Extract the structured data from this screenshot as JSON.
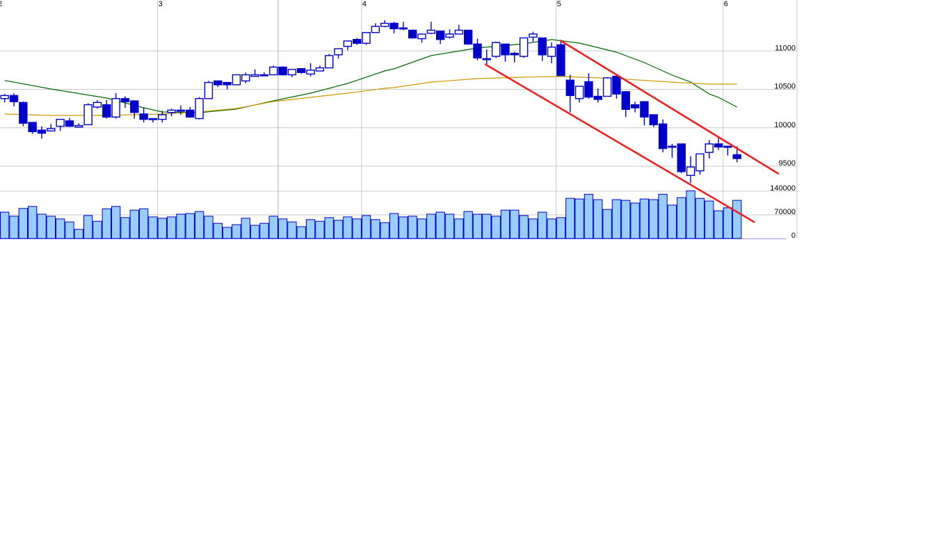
{
  "chart_data": {
    "type": "candlestick",
    "title": "",
    "x_tick_labels": [
      {
        "label": "2",
        "index": -0.5
      },
      {
        "label": "3",
        "index": 16.5
      },
      {
        "label": "4",
        "index": 38.5
      },
      {
        "label": "5",
        "index": 59.5
      },
      {
        "label": "6",
        "index": 77.5
      }
    ],
    "x_minor_grid_index": [
      29.5
    ],
    "price_axis": {
      "ticks": [
        9500,
        10000,
        10500,
        11000
      ],
      "labels": [
        "9500",
        "10000",
        "10500",
        "11000"
      ],
      "position": "right"
    },
    "volume_axis": {
      "ticks": [
        0,
        70000,
        140000
      ],
      "labels": [
        "0",
        "70000",
        "140000"
      ],
      "position": "right"
    },
    "grid": true,
    "colors": {
      "candle": "#0000CC",
      "volume_fill": "#99CCFF",
      "ma_short": "#006600",
      "ma_long": "#CC9900",
      "trendline": "#EE2222",
      "grid": "#C8C8C8"
    },
    "ohlc": [
      [
        10380,
        10440,
        10330,
        10420
      ],
      [
        10420,
        10450,
        10280,
        10340
      ],
      [
        10330,
        10340,
        10020,
        10060
      ],
      [
        10070,
        10070,
        9920,
        9950
      ],
      [
        9970,
        10020,
        9860,
        9930
      ],
      [
        9960,
        10050,
        9950,
        9990
      ],
      [
        10020,
        10110,
        9960,
        10110
      ],
      [
        10090,
        10130,
        10010,
        10020
      ],
      [
        10010,
        10060,
        10010,
        10030
      ],
      [
        10040,
        10320,
        10040,
        10300
      ],
      [
        10270,
        10360,
        10250,
        10330
      ],
      [
        10300,
        10360,
        10120,
        10140
      ],
      [
        10140,
        10450,
        10120,
        10380
      ],
      [
        10380,
        10410,
        10260,
        10340
      ],
      [
        10350,
        10360,
        10120,
        10200
      ],
      [
        10180,
        10260,
        10070,
        10110
      ],
      [
        10110,
        10120,
        10070,
        10120
      ],
      [
        10110,
        10220,
        10070,
        10170
      ],
      [
        10200,
        10250,
        10150,
        10230
      ],
      [
        10220,
        10290,
        10170,
        10230
      ],
      [
        10230,
        10270,
        10130,
        10140
      ],
      [
        10120,
        10400,
        10110,
        10380
      ],
      [
        10380,
        10610,
        10380,
        10590
      ],
      [
        10610,
        10610,
        10530,
        10560
      ],
      [
        10590,
        10590,
        10500,
        10560
      ],
      [
        10560,
        10690,
        10560,
        10690
      ],
      [
        10610,
        10720,
        10580,
        10690
      ],
      [
        10670,
        10760,
        10670,
        10690
      ],
      [
        10680,
        10720,
        10680,
        10690
      ],
      [
        10690,
        10810,
        10690,
        10790
      ],
      [
        10790,
        10800,
        10680,
        10690
      ],
      [
        10690,
        10760,
        10660,
        10760
      ],
      [
        10770,
        10770,
        10700,
        10720
      ],
      [
        10700,
        10840,
        10670,
        10750
      ],
      [
        10740,
        10810,
        10740,
        10780
      ],
      [
        10780,
        10960,
        10780,
        10940
      ],
      [
        10950,
        11030,
        10900,
        11030
      ],
      [
        11060,
        11130,
        11010,
        11130
      ],
      [
        11150,
        11170,
        11080,
        11100
      ],
      [
        11100,
        11240,
        11080,
        11240
      ],
      [
        11240,
        11360,
        11240,
        11320
      ],
      [
        11320,
        11400,
        11310,
        11360
      ],
      [
        11360,
        11380,
        11230,
        11290
      ],
      [
        11300,
        11380,
        11270,
        11290
      ],
      [
        11270,
        11280,
        11160,
        11170
      ],
      [
        11160,
        11220,
        11110,
        11220
      ],
      [
        11230,
        11380,
        11220,
        11270
      ],
      [
        11260,
        11260,
        11090,
        11150
      ],
      [
        11180,
        11280,
        11160,
        11220
      ],
      [
        11220,
        11340,
        11220,
        11270
      ],
      [
        11270,
        11270,
        11080,
        11090
      ],
      [
        11090,
        11160,
        10880,
        10910
      ],
      [
        10890,
        11020,
        10830,
        10900
      ],
      [
        10930,
        11120,
        10910,
        11110
      ],
      [
        11090,
        11090,
        10860,
        10950
      ],
      [
        10970,
        10990,
        10850,
        10950
      ],
      [
        10930,
        11170,
        10910,
        11170
      ],
      [
        11180,
        11250,
        11120,
        11220
      ],
      [
        11170,
        11170,
        10870,
        10950
      ],
      [
        10930,
        11110,
        10840,
        11050
      ],
      [
        11080,
        11120,
        10680,
        10680
      ],
      [
        10620,
        10690,
        10200,
        10420
      ],
      [
        10380,
        10540,
        10330,
        10540
      ],
      [
        10600,
        10710,
        10380,
        10400
      ],
      [
        10410,
        10510,
        10330,
        10370
      ],
      [
        10410,
        10660,
        10410,
        10650
      ],
      [
        10670,
        10670,
        10380,
        10440
      ],
      [
        10470,
        10470,
        10140,
        10240
      ],
      [
        10300,
        10340,
        10200,
        10260
      ],
      [
        10340,
        10340,
        10030,
        10140
      ],
      [
        10170,
        10170,
        10010,
        10040
      ],
      [
        10050,
        10110,
        9680,
        9730
      ],
      [
        9750,
        9790,
        9610,
        9760
      ],
      [
        9790,
        9790,
        9410,
        9430
      ],
      [
        9380,
        9630,
        9280,
        9490
      ],
      [
        9440,
        9660,
        9390,
        9660
      ],
      [
        9680,
        9840,
        9600,
        9790
      ],
      [
        9790,
        9870,
        9710,
        9750
      ],
      [
        9760,
        9760,
        9640,
        9750
      ],
      [
        9650,
        9760,
        9550,
        9600
      ]
    ],
    "volume": [
      78000,
      66000,
      89000,
      95000,
      72000,
      66000,
      58000,
      49000,
      27000,
      68000,
      51000,
      88000,
      95000,
      62000,
      84000,
      88000,
      64000,
      60000,
      64000,
      72000,
      74000,
      80000,
      66000,
      45000,
      33000,
      41000,
      60000,
      39000,
      45000,
      66000,
      58000,
      49000,
      35000,
      56000,
      51000,
      62000,
      54000,
      64000,
      58000,
      68000,
      56000,
      47000,
      74000,
      64000,
      66000,
      58000,
      72000,
      78000,
      72000,
      58000,
      80000,
      72000,
      72000,
      66000,
      84000,
      84000,
      68000,
      58000,
      78000,
      58000,
      62000,
      119000,
      117000,
      131000,
      115000,
      86000,
      115000,
      113000,
      105000,
      117000,
      115000,
      131000,
      99000,
      121000,
      141000,
      119000,
      111000,
      82000,
      91000,
      113000
    ],
    "moving_averages": [
      {
        "color": "#006600",
        "points": [
          [
            0,
            10616
          ],
          [
            5,
            10505
          ],
          [
            11,
            10387
          ],
          [
            15,
            10261
          ],
          [
            17,
            10206
          ],
          [
            21,
            10197
          ],
          [
            25,
            10243
          ],
          [
            29,
            10351
          ],
          [
            33,
            10451
          ],
          [
            37,
            10577
          ],
          [
            41,
            10740
          ],
          [
            42,
            10767
          ],
          [
            46,
            10939
          ],
          [
            51,
            11039
          ],
          [
            56,
            11093
          ],
          [
            59,
            11148
          ],
          [
            62,
            11102
          ],
          [
            66,
            10985
          ],
          [
            69,
            10849
          ],
          [
            72,
            10686
          ],
          [
            74,
            10595
          ],
          [
            76,
            10441
          ],
          [
            77,
            10396
          ],
          [
            79,
            10270
          ]
        ]
      },
      {
        "color": "#CC9900",
        "points": [
          [
            0,
            10179
          ],
          [
            5,
            10161
          ],
          [
            11,
            10161
          ],
          [
            17,
            10179
          ],
          [
            21,
            10206
          ],
          [
            25,
            10252
          ],
          [
            29,
            10342
          ],
          [
            33,
            10396
          ],
          [
            37,
            10451
          ],
          [
            41,
            10514
          ],
          [
            42,
            10523
          ],
          [
            46,
            10595
          ],
          [
            51,
            10641
          ],
          [
            56,
            10659
          ],
          [
            60,
            10668
          ],
          [
            66,
            10641
          ],
          [
            72,
            10595
          ],
          [
            76,
            10568
          ],
          [
            79,
            10568
          ]
        ]
      }
    ],
    "trendlines": [
      {
        "from": [
          59.9,
          11140
        ],
        "to": [
          83.5,
          9400
        ]
      },
      {
        "from": [
          51.8,
          10830
        ],
        "to": [
          80.9,
          8770
        ]
      }
    ]
  }
}
